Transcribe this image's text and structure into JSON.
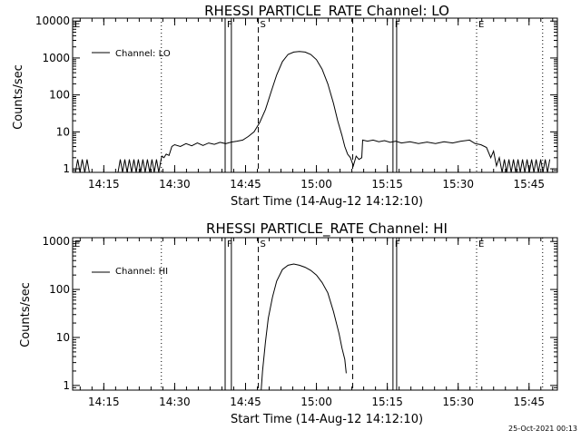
{
  "page": {
    "footer_timestamp": "25-Oct-2021 00:13"
  },
  "chart_data": [
    {
      "type": "line",
      "title": "RHESSI PARTICLE_RATE Channel: LO",
      "xlabel": "Start Time (14-Aug-12 14:12:10)",
      "ylabel": "Counts/sec",
      "legend": "Channel: LO",
      "legend_placement": "top-left",
      "yscale": "log",
      "xlim": [
        14.14,
        15.85
      ],
      "ylim": [
        0.8,
        12000
      ],
      "x_tick_labels": [
        "14:15",
        "14:30",
        "14:45",
        "15:00",
        "15:15",
        "15:30",
        "15:45"
      ],
      "x_ticks": [
        14.25,
        14.5,
        14.75,
        15.0,
        15.25,
        15.5,
        15.75
      ],
      "y_ticks": [
        1,
        10,
        100,
        1000,
        10000
      ],
      "y_tick_labels": [
        "1",
        "10",
        "100",
        "1000",
        "10000"
      ],
      "markers": [
        {
          "label": "E",
          "x": 14.14,
          "style": "none"
        },
        {
          "label": "",
          "x": 14.453,
          "style": "dotted"
        },
        {
          "label": "F",
          "x": 14.678,
          "style": "solid"
        },
        {
          "label": "",
          "x": 14.7,
          "style": "solid"
        },
        {
          "label": "S",
          "x": 14.795,
          "style": "dashed"
        },
        {
          "label": "",
          "x": 15.128,
          "style": "dashed"
        },
        {
          "label": "F",
          "x": 15.27,
          "style": "solid"
        },
        {
          "label": "",
          "x": 15.283,
          "style": "solid"
        },
        {
          "label": "E",
          "x": 15.565,
          "style": "dotted"
        },
        {
          "label": "",
          "x": 15.798,
          "style": "dotted"
        }
      ],
      "series": [
        {
          "name": "Channel: LO",
          "points": [
            [
              14.15,
              0.8
            ],
            [
              14.158,
              1.8
            ],
            [
              14.166,
              0.8
            ],
            [
              14.174,
              1.8
            ],
            [
              14.183,
              0.8
            ],
            [
              14.191,
              1.8
            ],
            [
              14.199,
              0.8
            ],
            [
              14.3,
              0.8
            ],
            [
              14.308,
              1.8
            ],
            [
              14.316,
              0.8
            ],
            [
              14.324,
              1.8
            ],
            [
              14.332,
              0.8
            ],
            [
              14.34,
              1.8
            ],
            [
              14.348,
              0.8
            ],
            [
              14.356,
              1.8
            ],
            [
              14.364,
              0.8
            ],
            [
              14.372,
              1.8
            ],
            [
              14.38,
              0.8
            ],
            [
              14.388,
              1.8
            ],
            [
              14.396,
              0.8
            ],
            [
              14.404,
              1.8
            ],
            [
              14.412,
              0.8
            ],
            [
              14.42,
              1.8
            ],
            [
              14.428,
              0.8
            ],
            [
              14.436,
              1.8
            ],
            [
              14.444,
              0.8
            ],
            [
              14.452,
              1.8
            ],
            [
              14.455,
              2.2
            ],
            [
              14.462,
              2.0
            ],
            [
              14.47,
              2.5
            ],
            [
              14.48,
              2.3
            ],
            [
              14.49,
              4.0
            ],
            [
              14.5,
              4.5
            ],
            [
              14.52,
              4.0
            ],
            [
              14.54,
              4.8
            ],
            [
              14.56,
              4.2
            ],
            [
              14.58,
              5.0
            ],
            [
              14.6,
              4.3
            ],
            [
              14.62,
              5.0
            ],
            [
              14.64,
              4.6
            ],
            [
              14.66,
              5.2
            ],
            [
              14.68,
              4.8
            ],
            [
              14.7,
              5.3
            ],
            [
              14.72,
              5.6
            ],
            [
              14.74,
              6.0
            ],
            [
              14.76,
              7.5
            ],
            [
              14.78,
              10
            ],
            [
              14.8,
              18
            ],
            [
              14.82,
              40
            ],
            [
              14.84,
              120
            ],
            [
              14.86,
              350
            ],
            [
              14.88,
              800
            ],
            [
              14.9,
              1250
            ],
            [
              14.92,
              1450
            ],
            [
              14.94,
              1500
            ],
            [
              14.96,
              1450
            ],
            [
              14.98,
              1250
            ],
            [
              15.0,
              900
            ],
            [
              15.02,
              500
            ],
            [
              15.04,
              200
            ],
            [
              15.06,
              60
            ],
            [
              15.075,
              20
            ],
            [
              15.09,
              8
            ],
            [
              15.1,
              4
            ],
            [
              15.11,
              2.5
            ],
            [
              15.12,
              2.0
            ],
            [
              15.13,
              1.2
            ],
            [
              15.14,
              2.2
            ],
            [
              15.15,
              1.8
            ],
            [
              15.16,
              2.0
            ],
            [
              15.163,
              6.0
            ],
            [
              15.18,
              5.6
            ],
            [
              15.2,
              6.0
            ],
            [
              15.22,
              5.4
            ],
            [
              15.24,
              5.8
            ],
            [
              15.26,
              5.2
            ],
            [
              15.28,
              5.6
            ],
            [
              15.3,
              5.0
            ],
            [
              15.33,
              5.4
            ],
            [
              15.36,
              4.8
            ],
            [
              15.39,
              5.3
            ],
            [
              15.42,
              4.8
            ],
            [
              15.45,
              5.4
            ],
            [
              15.48,
              5.0
            ],
            [
              15.51,
              5.6
            ],
            [
              15.54,
              6.0
            ],
            [
              15.56,
              4.8
            ],
            [
              15.58,
              4.5
            ],
            [
              15.6,
              3.8
            ],
            [
              15.615,
              2.0
            ],
            [
              15.625,
              3.0
            ],
            [
              15.635,
              1.2
            ],
            [
              15.645,
              2.0
            ],
            [
              15.655,
              0.8
            ],
            [
              15.663,
              1.8
            ],
            [
              15.671,
              0.8
            ],
            [
              15.679,
              1.8
            ],
            [
              15.687,
              0.8
            ],
            [
              15.695,
              1.8
            ],
            [
              15.703,
              0.8
            ],
            [
              15.711,
              1.8
            ],
            [
              15.719,
              0.8
            ],
            [
              15.727,
              1.8
            ],
            [
              15.735,
              0.8
            ],
            [
              15.743,
              1.8
            ],
            [
              15.751,
              0.8
            ],
            [
              15.759,
              1.8
            ],
            [
              15.767,
              0.8
            ],
            [
              15.775,
              1.8
            ],
            [
              15.783,
              0.8
            ],
            [
              15.791,
              1.8
            ],
            [
              15.799,
              0.8
            ],
            [
              15.807,
              1.8
            ],
            [
              15.815,
              0.8
            ],
            [
              15.823,
              1.8
            ]
          ]
        }
      ]
    },
    {
      "type": "line",
      "title": "RHESSI PARTICLE_RATE Channel: HI",
      "xlabel": "Start Time (14-Aug-12 14:12:10)",
      "ylabel": "Counts/sec",
      "legend": "Channel: HI",
      "legend_placement": "top-left",
      "yscale": "log",
      "xlim": [
        14.14,
        15.85
      ],
      "ylim": [
        0.8,
        1200
      ],
      "x_tick_labels": [
        "14:15",
        "14:30",
        "14:45",
        "15:00",
        "15:15",
        "15:30",
        "15:45"
      ],
      "x_ticks": [
        14.25,
        14.5,
        14.75,
        15.0,
        15.25,
        15.5,
        15.75
      ],
      "y_ticks": [
        1,
        10,
        100,
        1000
      ],
      "y_tick_labels": [
        "1",
        "10",
        "100",
        "1000"
      ],
      "markers": [
        {
          "label": "E",
          "x": 14.14,
          "style": "none"
        },
        {
          "label": "",
          "x": 14.453,
          "style": "dotted"
        },
        {
          "label": "F",
          "x": 14.678,
          "style": "solid"
        },
        {
          "label": "",
          "x": 14.7,
          "style": "solid"
        },
        {
          "label": "S",
          "x": 14.795,
          "style": "dashed"
        },
        {
          "label": "",
          "x": 15.128,
          "style": "dashed"
        },
        {
          "label": "F",
          "x": 15.27,
          "style": "solid"
        },
        {
          "label": "",
          "x": 15.283,
          "style": "solid"
        },
        {
          "label": "E",
          "x": 15.565,
          "style": "dotted"
        },
        {
          "label": "",
          "x": 15.798,
          "style": "dotted"
        }
      ],
      "series": [
        {
          "name": "Channel: HI",
          "points": [
            [
              14.805,
              0.8
            ],
            [
              14.81,
              2.0
            ],
            [
              14.82,
              8
            ],
            [
              14.83,
              25
            ],
            [
              14.845,
              70
            ],
            [
              14.86,
              150
            ],
            [
              14.88,
              260
            ],
            [
              14.9,
              320
            ],
            [
              14.92,
              340
            ],
            [
              14.94,
              320
            ],
            [
              14.96,
              290
            ],
            [
              14.98,
              250
            ],
            [
              15.0,
              200
            ],
            [
              15.02,
              140
            ],
            [
              15.04,
              85
            ],
            [
              15.06,
              35
            ],
            [
              15.08,
              12
            ],
            [
              15.09,
              6
            ],
            [
              15.1,
              3.5
            ],
            [
              15.105,
              1.8
            ]
          ]
        }
      ]
    }
  ]
}
